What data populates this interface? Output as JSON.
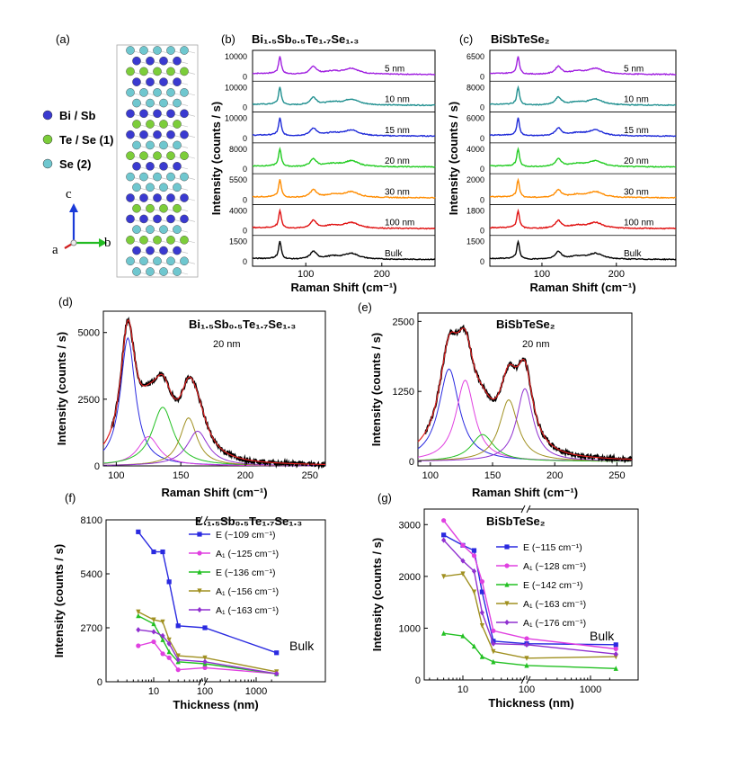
{
  "crystal": {
    "panel_label": "(a)",
    "legend": [
      {
        "label": "Bi / Sb",
        "color": "#3a3ad0"
      },
      {
        "label": "Te / Se (1)",
        "color": "#7ccd3a"
      },
      {
        "label": "Se (2)",
        "color": "#6fc7cf"
      }
    ],
    "axes": {
      "c": "c",
      "a": "a",
      "b": "b"
    }
  },
  "stack_labels": [
    "5 nm",
    "10 nm",
    "15 nm",
    "20 nm",
    "30 nm",
    "100 nm",
    "Bulk"
  ],
  "stack_colors": [
    "#a020e0",
    "#1f8f8f",
    "#1e2ad8",
    "#22cc22",
    "#ff8c00",
    "#e01010",
    "#000000"
  ],
  "fit_colors": [
    "#2a2ae0",
    "#e040e0",
    "#22c022",
    "#a09020",
    "#9030d0"
  ],
  "chart_data": [
    {
      "id": "b",
      "panel_label": "(b)",
      "type": "line",
      "title": "Bi₁.₅Sb₀.₅Te₁.₇Se₁.₃",
      "xlabel": "Raman Shift (cm⁻¹)",
      "ylabel": "Intensity (counts / s)",
      "xlim": [
        30,
        270
      ],
      "xticks": [
        100,
        200
      ],
      "peaks": [
        66,
        110,
        160
      ],
      "series": [
        {
          "name": "5 nm",
          "yticks": [
            0,
            10000
          ]
        },
        {
          "name": "10 nm",
          "yticks": [
            0,
            10000
          ]
        },
        {
          "name": "15 nm",
          "yticks": [
            0,
            10000
          ]
        },
        {
          "name": "20 nm",
          "yticks": [
            0,
            8000
          ]
        },
        {
          "name": "30 nm",
          "yticks": [
            0,
            5500
          ]
        },
        {
          "name": "100 nm",
          "yticks": [
            0,
            4000
          ]
        },
        {
          "name": "Bulk",
          "yticks": [
            0,
            1500
          ]
        }
      ]
    },
    {
      "id": "c",
      "panel_label": "(c)",
      "type": "line",
      "title": "BiSbTeSe₂",
      "xlabel": "Raman Shift (cm⁻¹)",
      "ylabel": "Intensity (counts / s)",
      "xlim": [
        30,
        280
      ],
      "xticks": [
        100,
        200
      ],
      "peaks": [
        68,
        122,
        172
      ],
      "series": [
        {
          "name": "5 nm",
          "yticks": [
            0,
            6500
          ]
        },
        {
          "name": "10 nm",
          "yticks": [
            0,
            8000
          ]
        },
        {
          "name": "15 nm",
          "yticks": [
            0,
            6000
          ]
        },
        {
          "name": "20 nm",
          "yticks": [
            0,
            4000
          ]
        },
        {
          "name": "30 nm",
          "yticks": [
            0,
            2000
          ]
        },
        {
          "name": "100 nm",
          "yticks": [
            0,
            1800
          ]
        },
        {
          "name": "Bulk",
          "yticks": [
            0,
            1500
          ]
        }
      ]
    },
    {
      "id": "d",
      "panel_label": "(d)",
      "type": "line",
      "title": "Bi₁.₅Sb₀.₅Te₁.₇Se₁.₃",
      "subtitle": "20 nm",
      "xlabel": "Raman Shift (cm⁻¹)",
      "ylabel": "Intensity (counts / s)",
      "xlim": [
        90,
        262
      ],
      "ylim": [
        0,
        5800
      ],
      "xticks": [
        100,
        150,
        200,
        250
      ],
      "yticks": [
        0,
        2500,
        5000
      ],
      "components": [
        {
          "center": 109,
          "amp": 4800,
          "width": 7
        },
        {
          "center": 125,
          "amp": 1100,
          "width": 10
        },
        {
          "center": 136,
          "amp": 2200,
          "width": 10
        },
        {
          "center": 156,
          "amp": 1800,
          "width": 8
        },
        {
          "center": 163,
          "amp": 1300,
          "width": 10
        }
      ]
    },
    {
      "id": "e",
      "panel_label": "(e)",
      "type": "line",
      "title": "BiSbTeSe₂",
      "subtitle": "20 nm",
      "xlabel": "Raman Shift (cm⁻¹)",
      "ylabel": "Intensity (counts / s)",
      "xlim": [
        90,
        262
      ],
      "ylim": [
        -80,
        2650
      ],
      "xticks": [
        100,
        150,
        200,
        250
      ],
      "yticks": [
        0,
        1250,
        2500
      ],
      "components": [
        {
          "center": 115,
          "amp": 1650,
          "width": 10
        },
        {
          "center": 128,
          "amp": 1450,
          "width": 9
        },
        {
          "center": 142,
          "amp": 480,
          "width": 11
        },
        {
          "center": 163,
          "amp": 1100,
          "width": 9
        },
        {
          "center": 176,
          "amp": 1300,
          "width": 8
        }
      ]
    },
    {
      "id": "f",
      "panel_label": "(f)",
      "type": "line",
      "title": "Bi₁.₅Sb₀.₅Te₁.₇Se₁.₃",
      "annotation": "Bulk",
      "xlabel": "Thickness (nm)",
      "ylabel": "Intensity (counts / s)",
      "ylim": [
        0,
        8100
      ],
      "yticks": [
        0,
        2700,
        5400,
        8100
      ],
      "xtick_labels": [
        "10",
        "100",
        "1000"
      ],
      "x": [
        5,
        10,
        15,
        20,
        30,
        100,
        2500
      ],
      "series": [
        {
          "name": "E (~109 cm⁻¹)",
          "values": [
            7500,
            6500,
            6500,
            5000,
            2800,
            2700,
            1450
          ]
        },
        {
          "name": "A₁ (~125 cm⁻¹)",
          "values": [
            1800,
            2000,
            1400,
            1200,
            600,
            700,
            400
          ]
        },
        {
          "name": "E (~136 cm⁻¹)",
          "values": [
            3300,
            2900,
            2100,
            1500,
            1000,
            900,
            400
          ]
        },
        {
          "name": "A₁ (~156 cm⁻¹)",
          "values": [
            3500,
            3100,
            3000,
            2100,
            1300,
            1200,
            500
          ]
        },
        {
          "name": "A₁ (~163 cm⁻¹)",
          "values": [
            2600,
            2500,
            2300,
            1900,
            1100,
            1000,
            400
          ]
        }
      ]
    },
    {
      "id": "g",
      "panel_label": "(g)",
      "type": "line",
      "title": "BiSbTeSe₂",
      "annotation": "Bulk",
      "xlabel": "Thickness (nm)",
      "ylabel": "Intensity (counts / s)",
      "ylim": [
        0,
        3300
      ],
      "yticks": [
        0,
        1000,
        2000,
        3000
      ],
      "xtick_labels": [
        "10",
        "100",
        "1000"
      ],
      "x": [
        5,
        10,
        15,
        20,
        30,
        100,
        2500
      ],
      "series": [
        {
          "name": "E (~115 cm⁻¹)",
          "values": [
            2800,
            2600,
            2500,
            1700,
            750,
            700,
            680
          ]
        },
        {
          "name": "A₁ (~128 cm⁻¹)",
          "values": [
            3080,
            2600,
            2400,
            1900,
            950,
            800,
            600
          ]
        },
        {
          "name": "E (~142 cm⁻¹)",
          "values": [
            900,
            850,
            650,
            450,
            350,
            280,
            220
          ]
        },
        {
          "name": "A₁ (~163 cm⁻¹)",
          "values": [
            2000,
            2050,
            1700,
            1050,
            550,
            420,
            450
          ]
        },
        {
          "name": "A₁ (~176 cm⁻¹)",
          "values": [
            2700,
            2300,
            2100,
            1300,
            700,
            680,
            500
          ]
        }
      ]
    }
  ]
}
